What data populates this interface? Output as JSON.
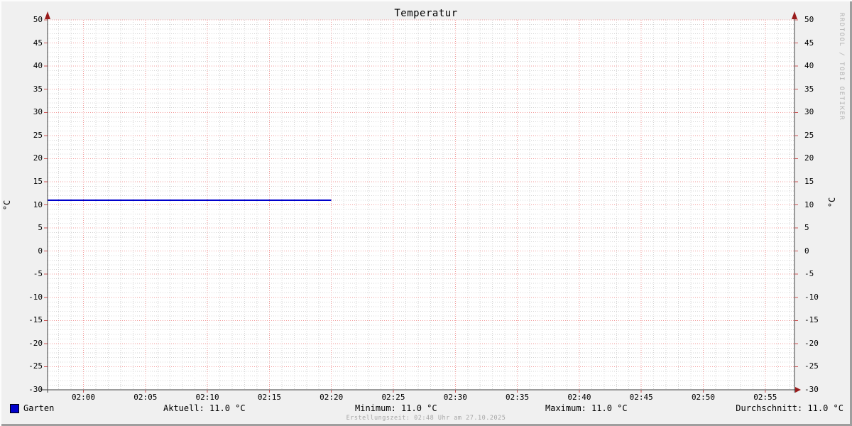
{
  "watermark": "RRDTOOL / TOBI OETIKER",
  "footer": "Erstellungszeit: 02:48 Uhr am 27.10.2025",
  "legend": {
    "series_label": "Garten",
    "stats": [
      "Aktuell: 11.0 °C",
      "Minimum: 11.0 °C",
      "Maximum: 11.0 °C",
      "Durchschnitt: 11.0 °C"
    ]
  },
  "chart_data": {
    "type": "line",
    "title": "Temperatur",
    "ylabel": "°C",
    "xlabel": "",
    "ylim": [
      -30,
      50
    ],
    "y_major_step": 5,
    "y_minor_step": 1,
    "x_minor_step_minutes": 1,
    "x_major_step_minutes": 5,
    "x_range": [
      "01:57",
      "02:57"
    ],
    "grid": true,
    "legend_position": "bottom",
    "y_ticklabels": [
      "50",
      "45",
      "40",
      "35",
      "30",
      "25",
      "20",
      "15",
      "10",
      "5",
      "0",
      "-5",
      "-10",
      "-15",
      "-20",
      "-25",
      "-30"
    ],
    "x_ticklabels": [
      "02:00",
      "02:05",
      "02:10",
      "02:15",
      "02:20",
      "02:25",
      "02:30",
      "02:35",
      "02:40",
      "02:45",
      "02:50",
      "02:55"
    ],
    "series": [
      {
        "name": "Garten",
        "color": "#0000cc",
        "points": [
          {
            "time": "01:57",
            "value": 11.0
          },
          {
            "time": "02:20",
            "value": 11.0
          }
        ]
      }
    ],
    "stats": {
      "aktuell_c": 11.0,
      "minimum_c": 11.0,
      "maximum_c": 11.0,
      "durchschnitt_c": 11.0
    },
    "colors": {
      "background": "#f0f0f0",
      "plot_background": "#ffffff",
      "major_grid": "#f29a9a",
      "minor_grid": "#d5d5d5",
      "axis": "#3c3c3c",
      "arrow": "#991b1b",
      "axis_tick": "#cc5555"
    }
  }
}
